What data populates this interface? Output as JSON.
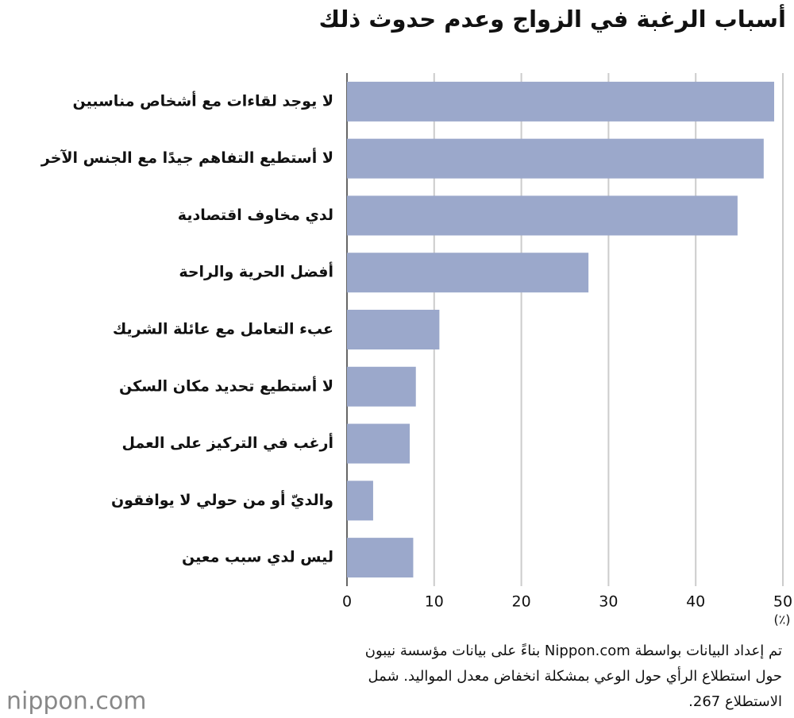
{
  "chart_data": {
    "type": "bar",
    "orientation": "horizontal",
    "title": "أسباب الرغبة في الزواج وعدم حدوث ذلك",
    "categories": [
      "لا يوجد لقاءات مع أشخاص مناسبين",
      "لا أستطيع التفاهم جيدًا مع الجنس الآخر",
      "لدي مخاوف اقتصادية",
      "أفضل الحرية والراحة",
      "عبء التعامل مع عائلة الشريك",
      "لا أستطيع تحديد مكان السكن",
      "أرغب في التركيز على العمل",
      "والديّ أو من حولي لا يوافقون",
      "ليس لدي سبب معين"
    ],
    "values": [
      49.0,
      47.8,
      44.8,
      27.7,
      10.6,
      7.9,
      7.2,
      3.0,
      7.6
    ],
    "color": "#9ba8cb",
    "xlim": [
      0,
      50
    ],
    "xticks": [
      0,
      10,
      20,
      30,
      40,
      50
    ],
    "grid": true,
    "unit_label": "(٪)",
    "note": [
      "تم إعداد البيانات بواسطة Nippon.com بناءً على بيانات مؤسسة نيبون",
      "حول استطلاع الرأي حول الوعي بمشكلة انخفاض معدل المواليد. شمل",
      "الاستطلاع 267."
    ],
    "logo": "nippon.com"
  }
}
